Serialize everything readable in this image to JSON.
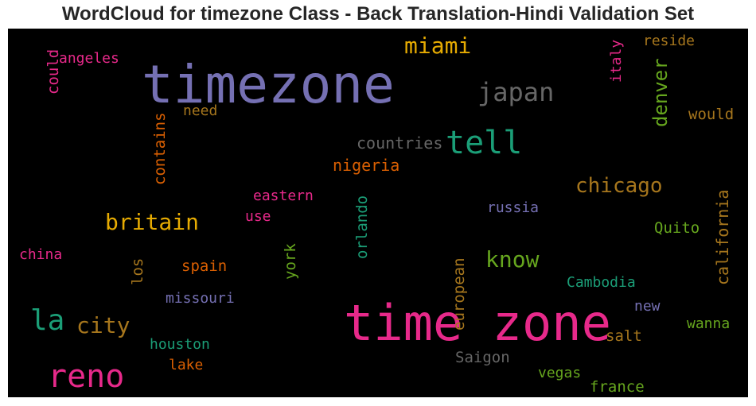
{
  "chart_data": {
    "type": "wordcloud",
    "title": "WordCloud for timezone Class - Back Translation-Hindi Validation Set",
    "background": "#000000",
    "words": [
      {
        "id": "timezone",
        "text": "timezone",
        "color": "#7570b3"
      },
      {
        "id": "time_zone",
        "text": "time zone",
        "color": "#e7298a"
      },
      {
        "id": "tell",
        "text": "tell",
        "color": "#1b9e77"
      },
      {
        "id": "reno",
        "text": "reno",
        "color": "#e7298a"
      },
      {
        "id": "la",
        "text": "la",
        "color": "#1b9e77"
      },
      {
        "id": "city",
        "text": "city",
        "color": "#a6761d"
      },
      {
        "id": "britain",
        "text": "britain",
        "color": "#e6ab02"
      },
      {
        "id": "chicago",
        "text": "chicago",
        "color": "#a6761d"
      },
      {
        "id": "miami",
        "text": "miami",
        "color": "#e6ab02"
      },
      {
        "id": "japan",
        "text": "japan",
        "color": "#666666"
      },
      {
        "id": "know",
        "text": "know",
        "color": "#66a61e"
      },
      {
        "id": "denver",
        "text": "denver",
        "color": "#66a61e"
      },
      {
        "id": "countries",
        "text": "countries",
        "color": "#666666"
      },
      {
        "id": "nigeria",
        "text": "nigeria",
        "color": "#d95f02"
      },
      {
        "id": "eastern",
        "text": "eastern",
        "color": "#e7298a"
      },
      {
        "id": "use",
        "text": "use",
        "color": "#e7298a"
      },
      {
        "id": "russia",
        "text": "russia",
        "color": "#7570b3"
      },
      {
        "id": "quito",
        "text": "Quito",
        "color": "#66a61e"
      },
      {
        "id": "california",
        "text": "california",
        "color": "#a6761d"
      },
      {
        "id": "china",
        "text": "china",
        "color": "#e7298a"
      },
      {
        "id": "los",
        "text": "los",
        "color": "#a6761d"
      },
      {
        "id": "spain",
        "text": "spain",
        "color": "#d95f02"
      },
      {
        "id": "york",
        "text": "york",
        "color": "#66a61e"
      },
      {
        "id": "orlando",
        "text": "orlando",
        "color": "#1b9e77"
      },
      {
        "id": "missouri",
        "text": "missouri",
        "color": "#7570b3"
      },
      {
        "id": "houston",
        "text": "houston",
        "color": "#1b9e77"
      },
      {
        "id": "lake",
        "text": "lake",
        "color": "#d95f02"
      },
      {
        "id": "european",
        "text": "european",
        "color": "#a6761d"
      },
      {
        "id": "saigon",
        "text": "Saigon",
        "color": "#666666"
      },
      {
        "id": "cambodia",
        "text": "Cambodia",
        "color": "#1b9e77"
      },
      {
        "id": "new",
        "text": "new",
        "color": "#7570b3"
      },
      {
        "id": "salt",
        "text": "salt",
        "color": "#a6761d"
      },
      {
        "id": "wanna",
        "text": "wanna",
        "color": "#66a61e"
      },
      {
        "id": "vegas",
        "text": "vegas",
        "color": "#66a61e"
      },
      {
        "id": "france",
        "text": "france",
        "color": "#66a61e"
      },
      {
        "id": "could",
        "text": "could",
        "color": "#e7298a"
      },
      {
        "id": "angeles",
        "text": "angeles",
        "color": "#e7298a"
      },
      {
        "id": "contains",
        "text": "contains",
        "color": "#d95f02"
      },
      {
        "id": "need",
        "text": "need",
        "color": "#a6761d"
      },
      {
        "id": "italy",
        "text": "italy",
        "color": "#e7298a"
      },
      {
        "id": "reside",
        "text": "reside",
        "color": "#a6761d"
      },
      {
        "id": "would",
        "text": "would",
        "color": "#a6761d"
      }
    ]
  }
}
